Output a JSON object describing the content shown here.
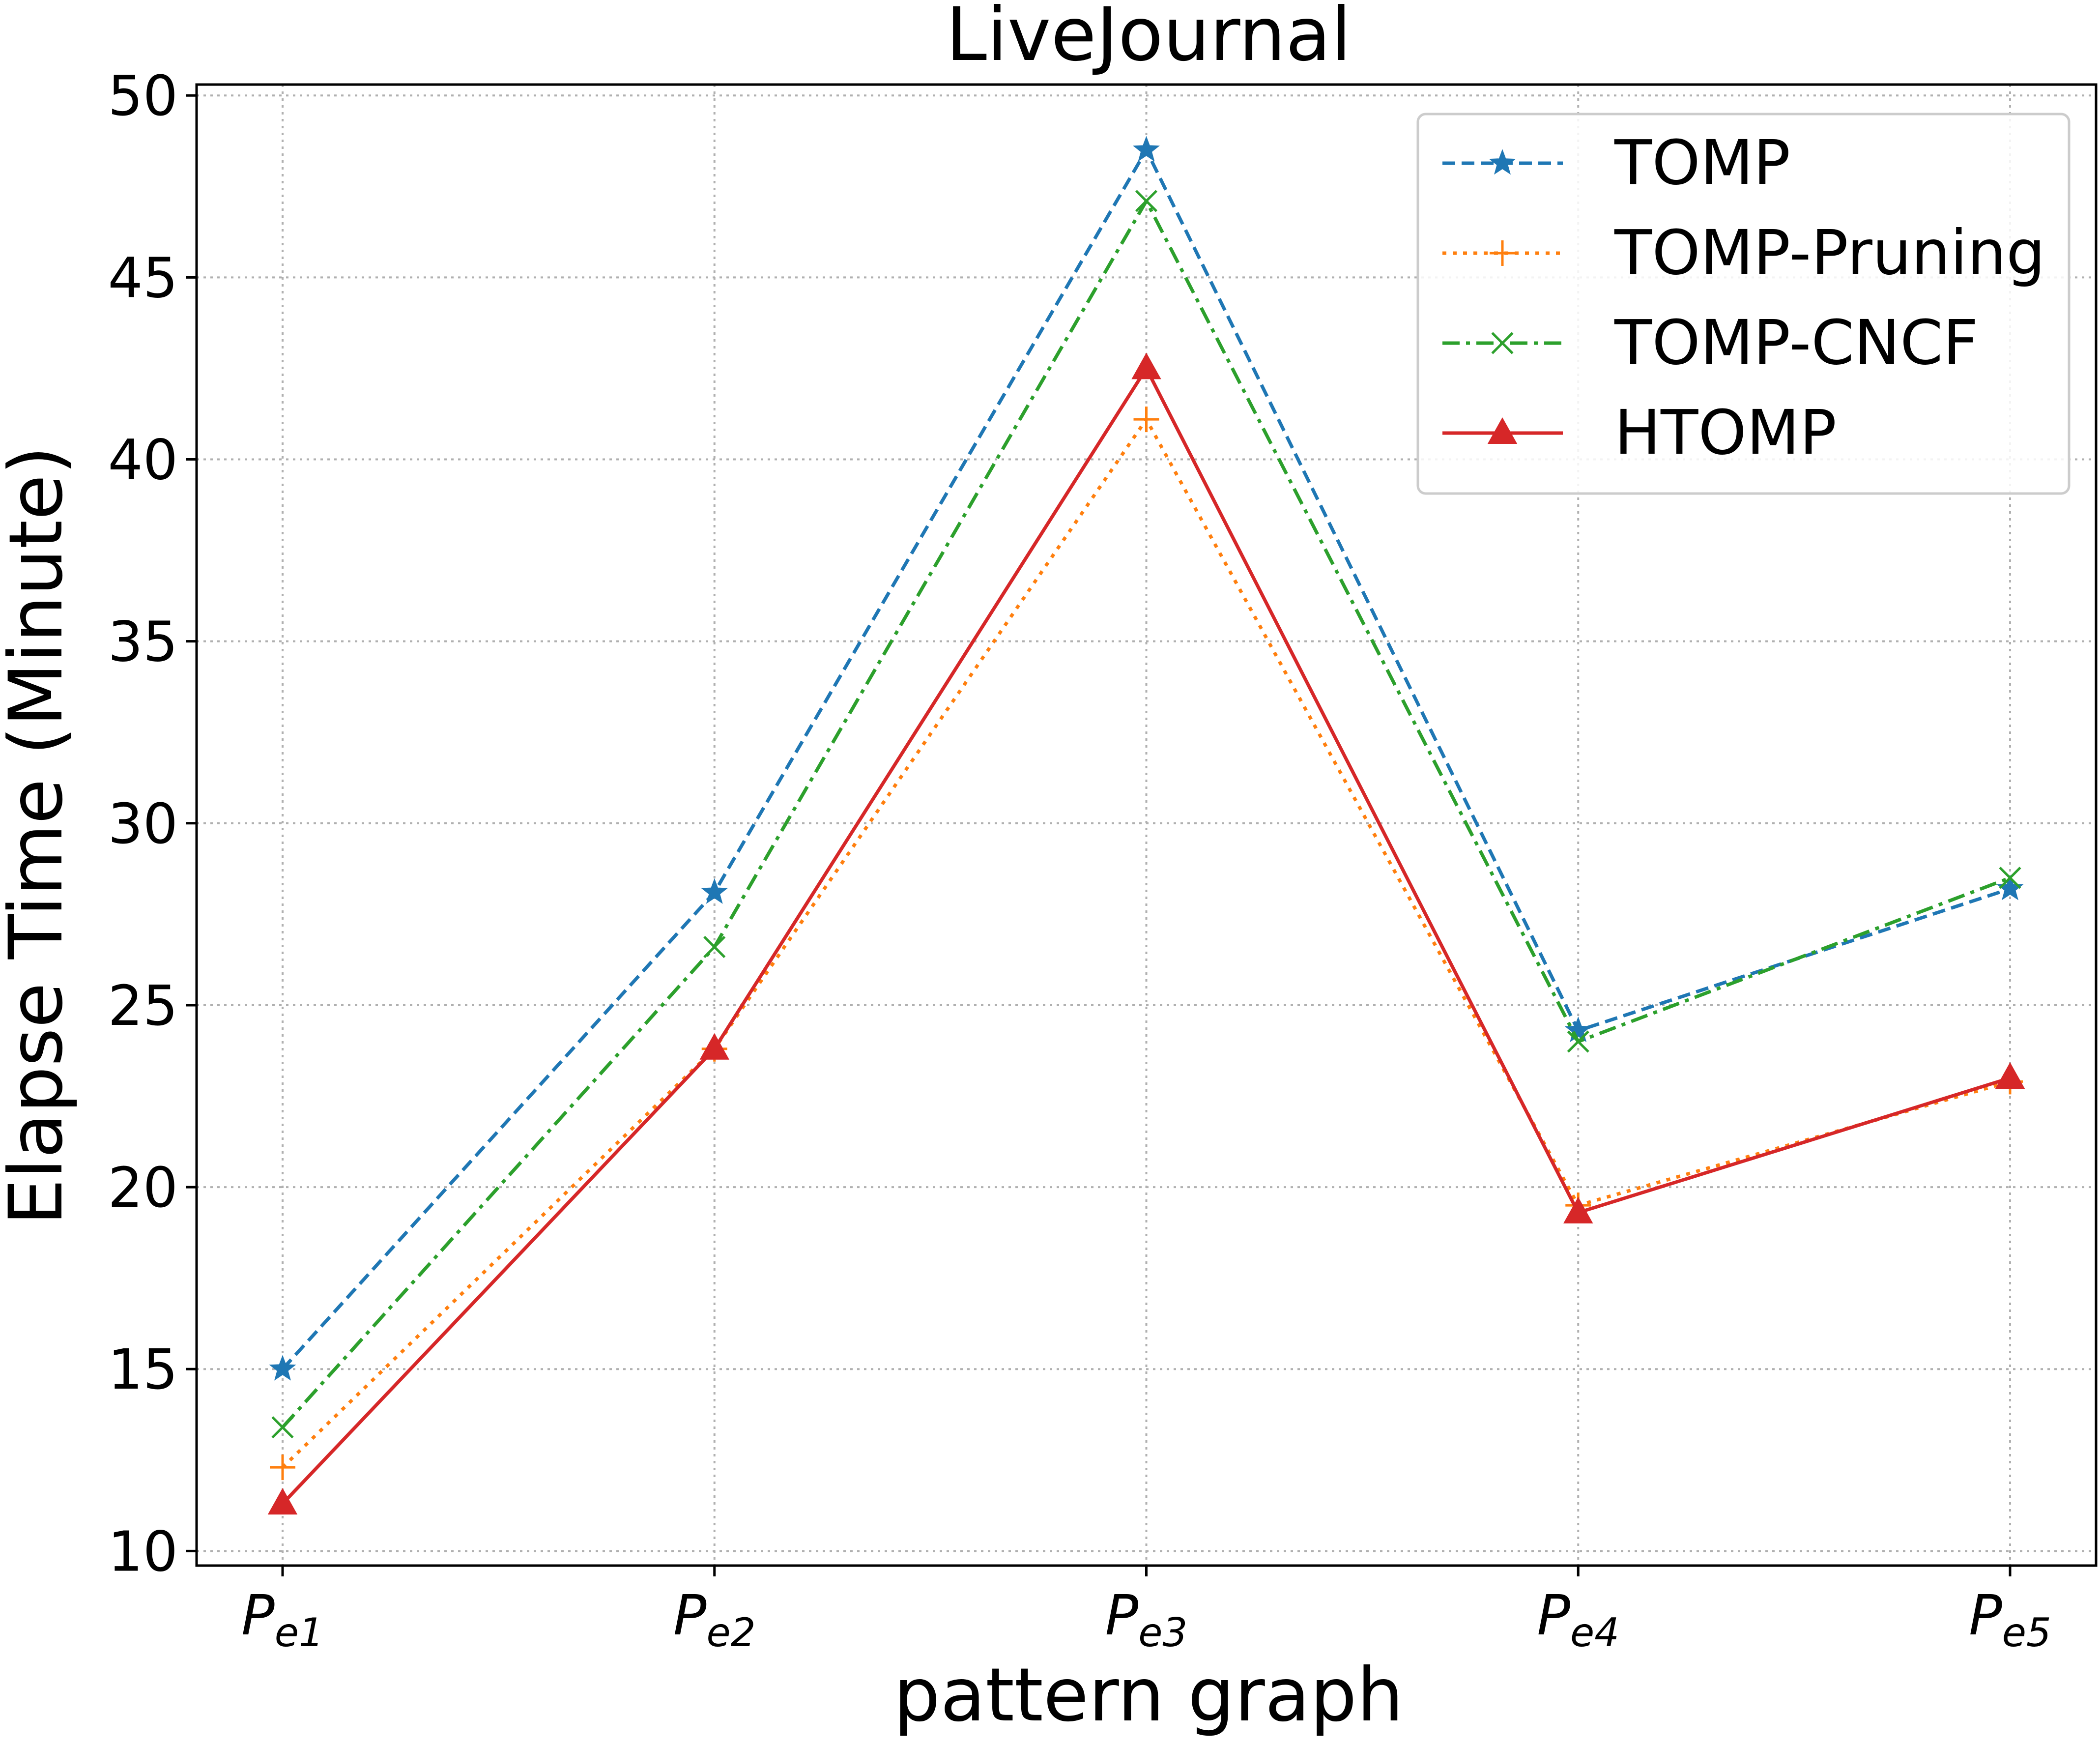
{
  "chart_data": {
    "type": "line",
    "title": "LiveJournal",
    "xlabel": "pattern graph",
    "ylabel": "Elapse Time (Minute)",
    "categories": [
      {
        "base": "P",
        "sub": "e1"
      },
      {
        "base": "P",
        "sub": "e2"
      },
      {
        "base": "P",
        "sub": "e3"
      },
      {
        "base": "P",
        "sub": "e4"
      },
      {
        "base": "P",
        "sub": "e5"
      }
    ],
    "ylim": [
      9.6,
      50.3
    ],
    "yticks": [
      10,
      15,
      20,
      25,
      30,
      35,
      40,
      45,
      50
    ],
    "grid": true,
    "legend_position": "top-right",
    "series": [
      {
        "name": "TOMP",
        "values": [
          15.0,
          28.1,
          48.5,
          24.3,
          28.2
        ],
        "color": "#1f77b4",
        "line_style": "dashed",
        "marker": "star"
      },
      {
        "name": "TOMP-Pruning",
        "values": [
          12.3,
          23.8,
          41.1,
          19.5,
          22.9
        ],
        "color": "#ff7f0e",
        "line_style": "dotted",
        "marker": "plus"
      },
      {
        "name": "TOMP-CNCF",
        "values": [
          13.4,
          26.6,
          47.1,
          24.0,
          28.5
        ],
        "color": "#2ca02c",
        "line_style": "dashdot",
        "marker": "x"
      },
      {
        "name": "HTOMP",
        "values": [
          11.3,
          23.8,
          42.5,
          19.3,
          23.0
        ],
        "color": "#d62728",
        "line_style": "solid",
        "marker": "triangle"
      }
    ]
  }
}
